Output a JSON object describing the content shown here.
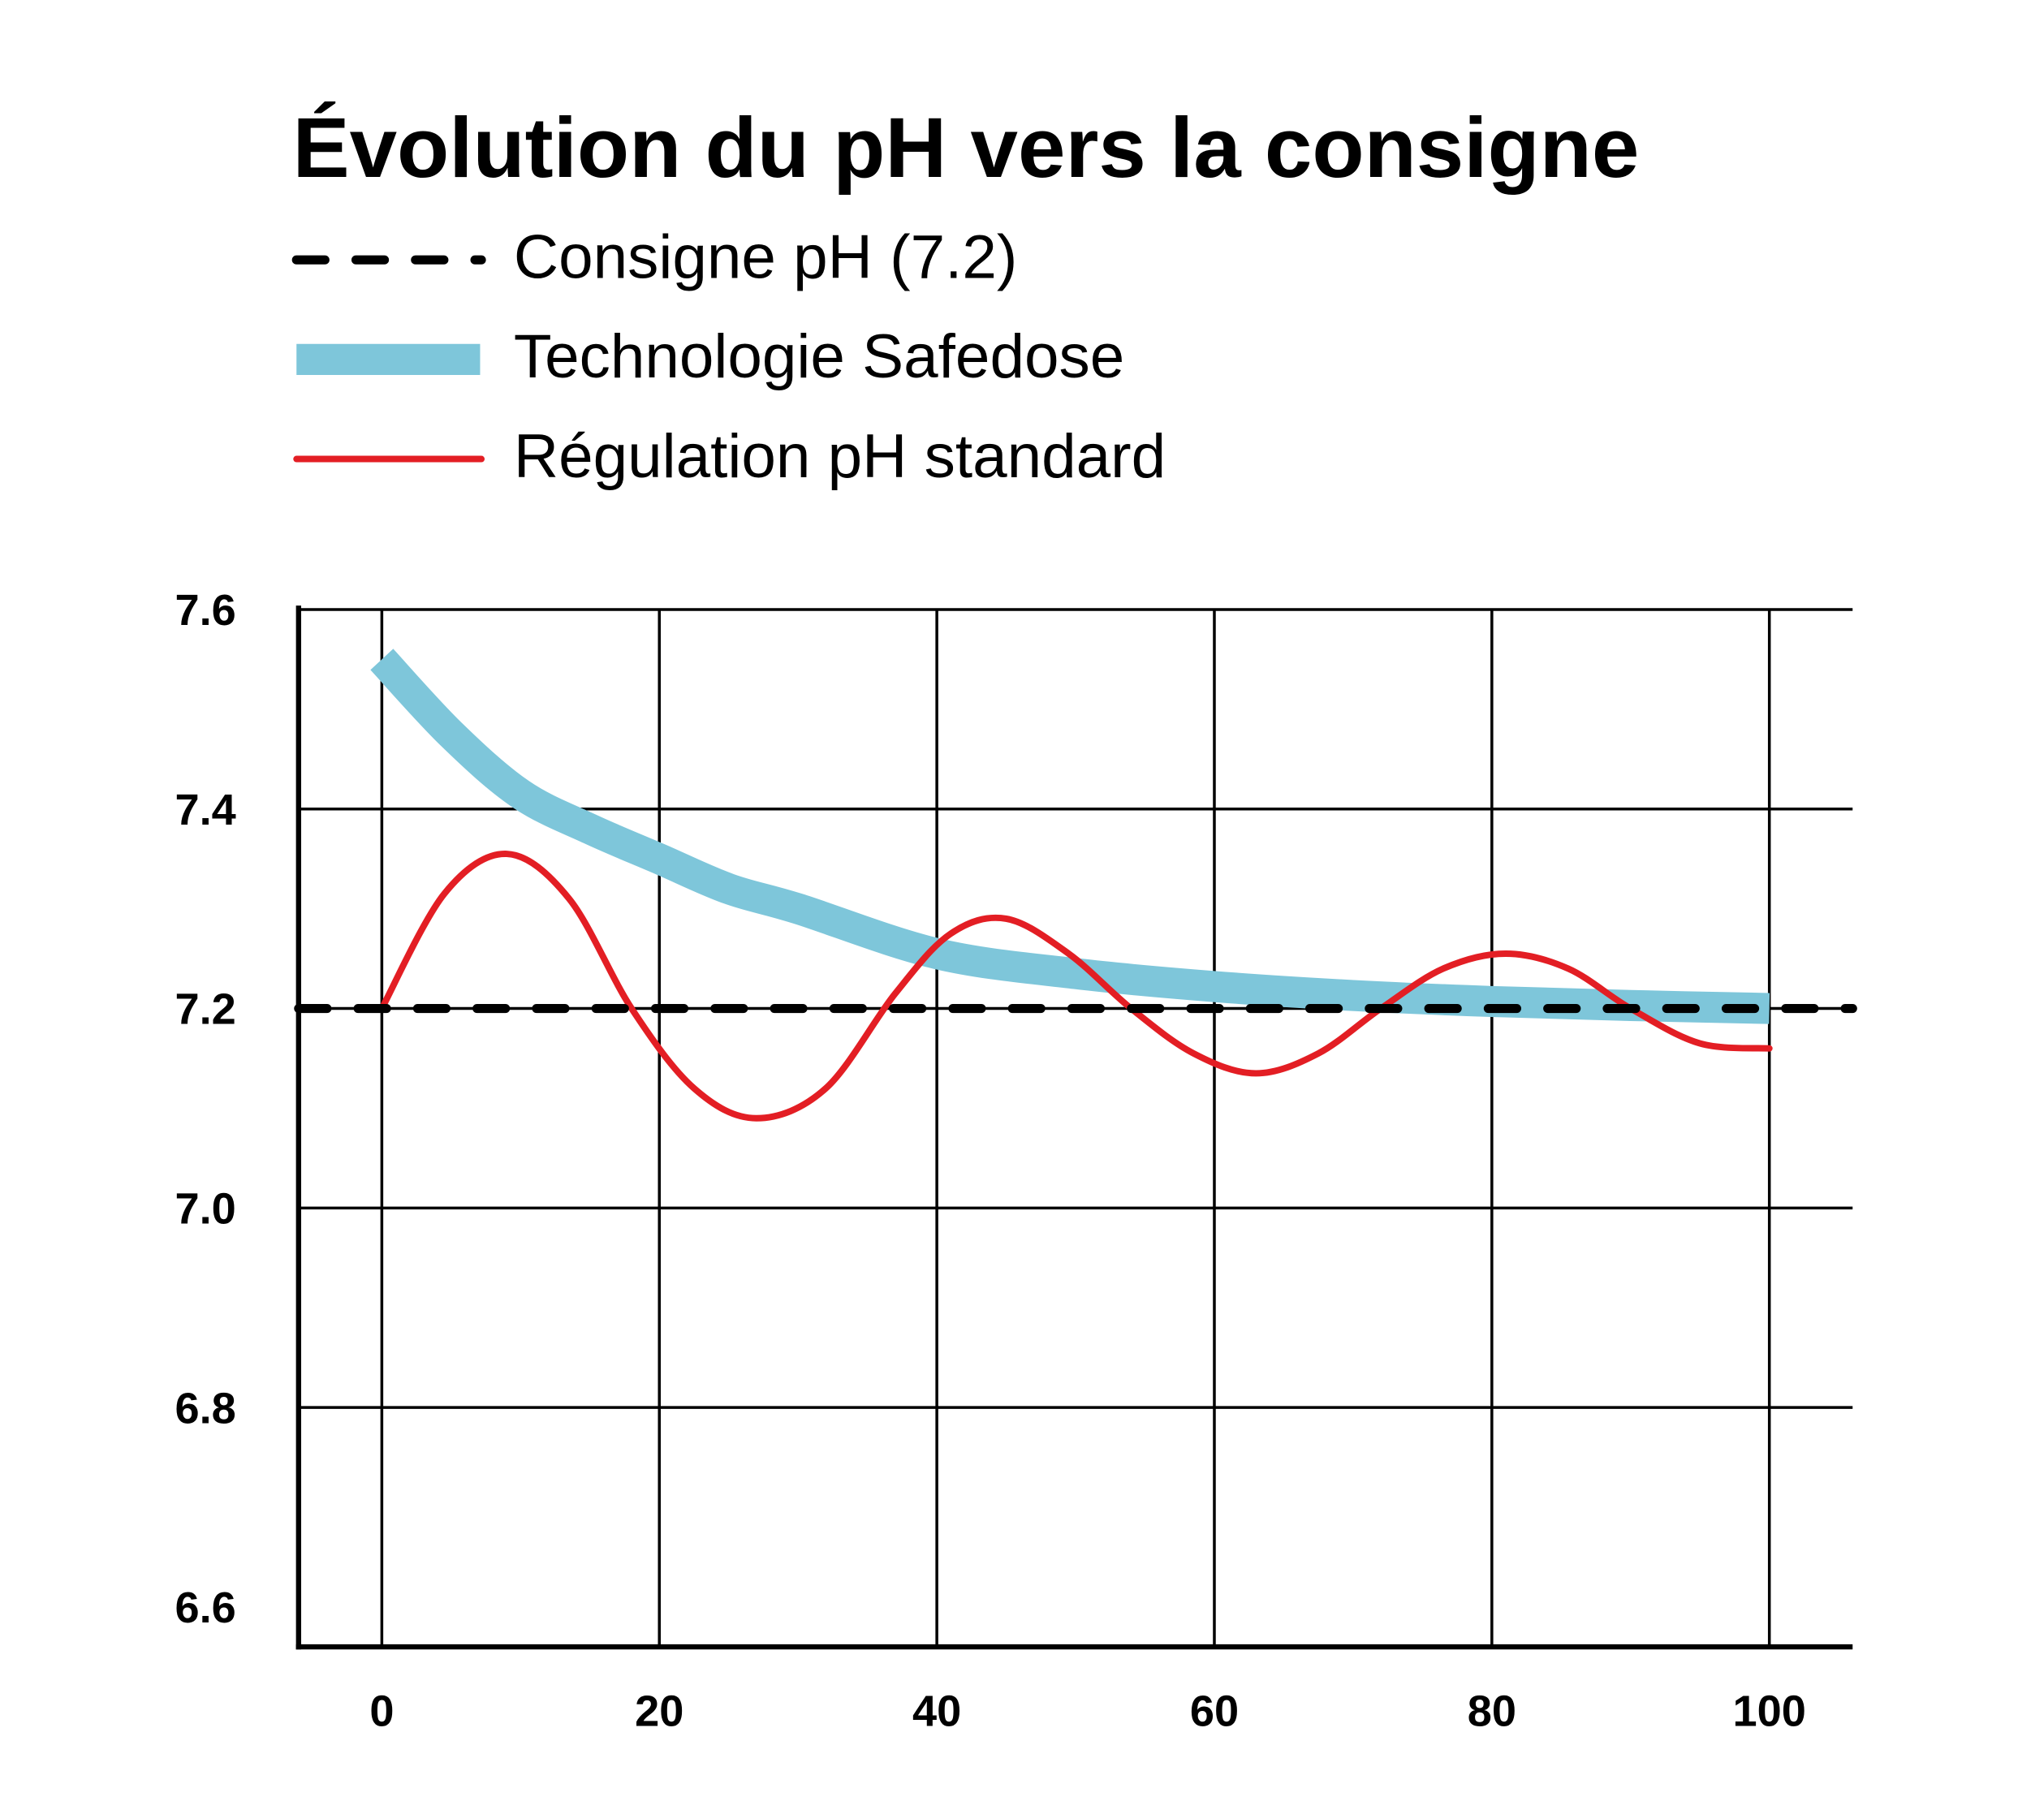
{
  "chart_data": {
    "type": "line",
    "title": "Évolution du pH vers la consigne",
    "xlabel": "",
    "ylabel": "",
    "xlim": [
      -6,
      106
    ],
    "ylim": [
      6.56,
      7.6
    ],
    "grid": true,
    "legend_position": "top-left",
    "x_ticks": [
      "0",
      "20",
      "40",
      "60",
      "80",
      "100"
    ],
    "y_ticks": [
      "7.6",
      "7.4",
      "7.2",
      "7.0",
      "6.8",
      "6.6"
    ],
    "series": [
      {
        "name": "Consigne pH (7.2)",
        "style": "dashed",
        "color": "#000000",
        "x": [
          -6,
          106
        ],
        "y": [
          7.2,
          7.2
        ]
      },
      {
        "name": "Technologie Safedose",
        "style": "thick",
        "color": "#7EC6DA",
        "x": [
          0,
          5,
          10,
          15,
          20,
          25,
          30,
          40,
          50,
          60,
          70,
          80,
          90,
          100
        ],
        "y": [
          7.55,
          7.475,
          7.415,
          7.38,
          7.35,
          7.32,
          7.3,
          7.255,
          7.235,
          7.222,
          7.213,
          7.207,
          7.203,
          7.2
        ]
      },
      {
        "name": "Régulation pH standard",
        "style": "solid",
        "color": "#E31E24",
        "x": [
          0,
          4.5,
          9,
          13.5,
          18,
          22.5,
          27,
          32,
          37,
          41,
          45,
          49.5,
          54,
          58.5,
          63,
          67.5,
          72,
          76.5,
          81,
          85.5,
          90,
          95,
          100
        ],
        "y": [
          7.2,
          7.315,
          7.355,
          7.31,
          7.2,
          7.12,
          7.09,
          7.12,
          7.215,
          7.275,
          7.29,
          7.255,
          7.2,
          7.155,
          7.135,
          7.155,
          7.2,
          7.24,
          7.255,
          7.24,
          7.2,
          7.165,
          7.16
        ]
      }
    ]
  }
}
